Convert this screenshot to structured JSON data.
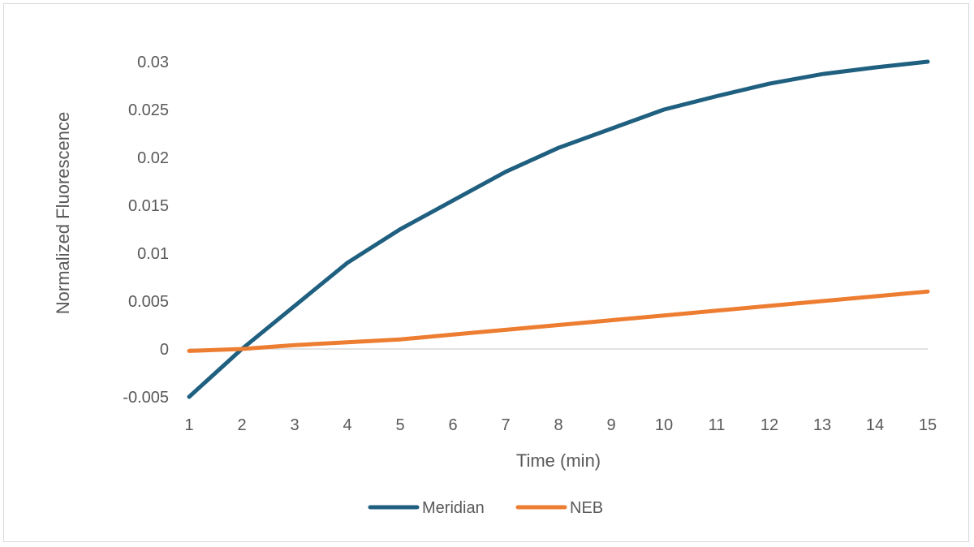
{
  "chart_data": {
    "type": "line",
    "title": "",
    "xlabel": "Time (min)",
    "ylabel": "Normalized Fluorescence",
    "x": [
      1,
      2,
      3,
      4,
      5,
      6,
      7,
      8,
      9,
      10,
      11,
      12,
      13,
      14,
      15
    ],
    "ylim": [
      -0.005,
      0.03
    ],
    "yticks": [
      -0.005,
      0,
      0.005,
      0.01,
      0.015,
      0.02,
      0.025,
      0.03
    ],
    "ytick_labels": [
      "-0.005",
      "0",
      "0.005",
      "0.01",
      "0.015",
      "0.02",
      "0.025",
      "0.03"
    ],
    "grid": false,
    "legend_position": "bottom",
    "series": [
      {
        "name": "Meridian",
        "color": "#1f5f7f",
        "values": [
          -0.005,
          0.0,
          0.0045,
          0.009,
          0.0125,
          0.0155,
          0.0185,
          0.021,
          0.023,
          0.025,
          0.0264,
          0.0277,
          0.0287,
          0.0294,
          0.03
        ]
      },
      {
        "name": "NEB",
        "color": "#ed7d31",
        "values": [
          -0.0002,
          0.0,
          0.0004,
          0.0007,
          0.001,
          0.0015,
          0.002,
          0.0025,
          0.003,
          0.0035,
          0.004,
          0.0045,
          0.005,
          0.0055,
          0.006
        ]
      }
    ]
  }
}
